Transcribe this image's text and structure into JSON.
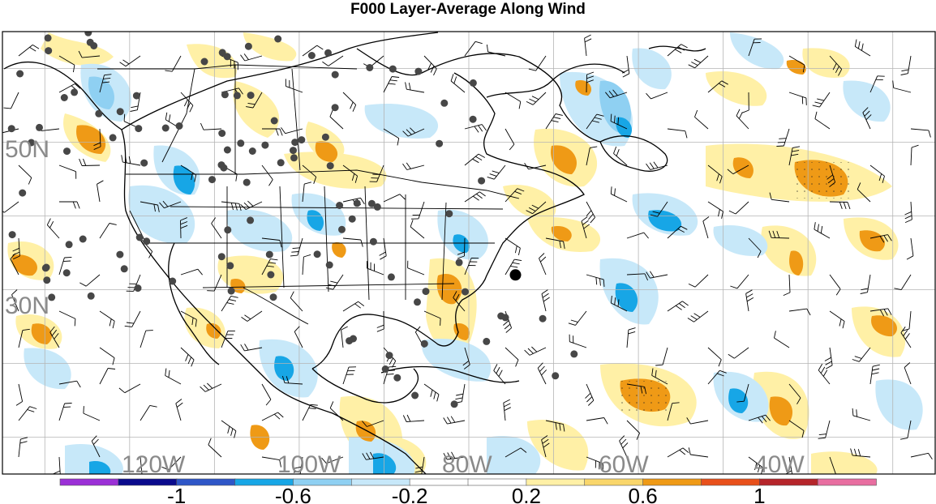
{
  "title": "F000 Layer-Average Along Wind",
  "lat_labels": [
    {
      "text": "50N",
      "lat": 50
    },
    {
      "text": "30N",
      "lat": 30
    }
  ],
  "lon_labels": [
    {
      "text": "120W",
      "lon": -120
    },
    {
      "text": "100W",
      "lon": -100
    },
    {
      "text": "80W",
      "lon": -80
    },
    {
      "text": "60W",
      "lon": -60
    },
    {
      "text": "40W",
      "lon": -40
    }
  ],
  "colorbar": {
    "colors": [
      "#9b30d6",
      "#0a0a8c",
      "#2f56c7",
      "#17a6e6",
      "#8fd0f2",
      "#c7e8f9",
      "#ffffff",
      "#ffffff",
      "#fff0a6",
      "#f9d66b",
      "#ef9a16",
      "#e8501b",
      "#b5252a",
      "#e86ea0"
    ],
    "tick_labels": [
      {
        "text": "-1",
        "value": -1
      },
      {
        "text": "-0.6",
        "value": -0.6
      },
      {
        "text": "-0.2",
        "value": -0.2
      },
      {
        "text": "0.2",
        "value": 0.2
      },
      {
        "text": "0.6",
        "value": 0.6
      },
      {
        "text": "1",
        "value": 1
      }
    ],
    "range": [
      -1.4,
      1.4
    ]
  },
  "map": {
    "lon_range": [
      -135,
      -25
    ],
    "lat_range": [
      5,
      65
    ],
    "gridlines": "on",
    "highlight_point": {
      "lon": -74.5,
      "lat": 32
    }
  }
}
